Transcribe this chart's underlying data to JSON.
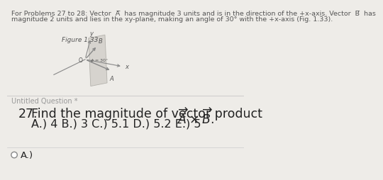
{
  "background_color": "#eeece8",
  "header_line1": "For Problems 27 to 28: Vector  A̅  has magnitude 3 units and is in the direction of the +x-axis. Vector  B̅  has",
  "header_line2": "magnitude 2 units and lies in the xy-plane, making an angle of 30° with the +x-axis (Fig. 1.33).",
  "figure_label": "Figure 1.33",
  "section_label": "Untitled Question *",
  "question_line1": "27.  Find the magnitude of vector product ",
  "question_line2": "        A.) 4 B.) 3 C.) 5.1 D.) 5.2 E.) 5",
  "answer_label": "A.)",
  "divider_color": "#cccccc",
  "text_color": "#555555",
  "arrow_color": "#888888",
  "plane_color": "#d4d1cc",
  "plane_edge_color": "#b0aea8",
  "font_size_header": 6.8,
  "font_size_figure": 6.5,
  "font_size_section": 7.0,
  "font_size_question": 12.5,
  "font_size_choices": 11.5,
  "font_size_answer": 9.5
}
